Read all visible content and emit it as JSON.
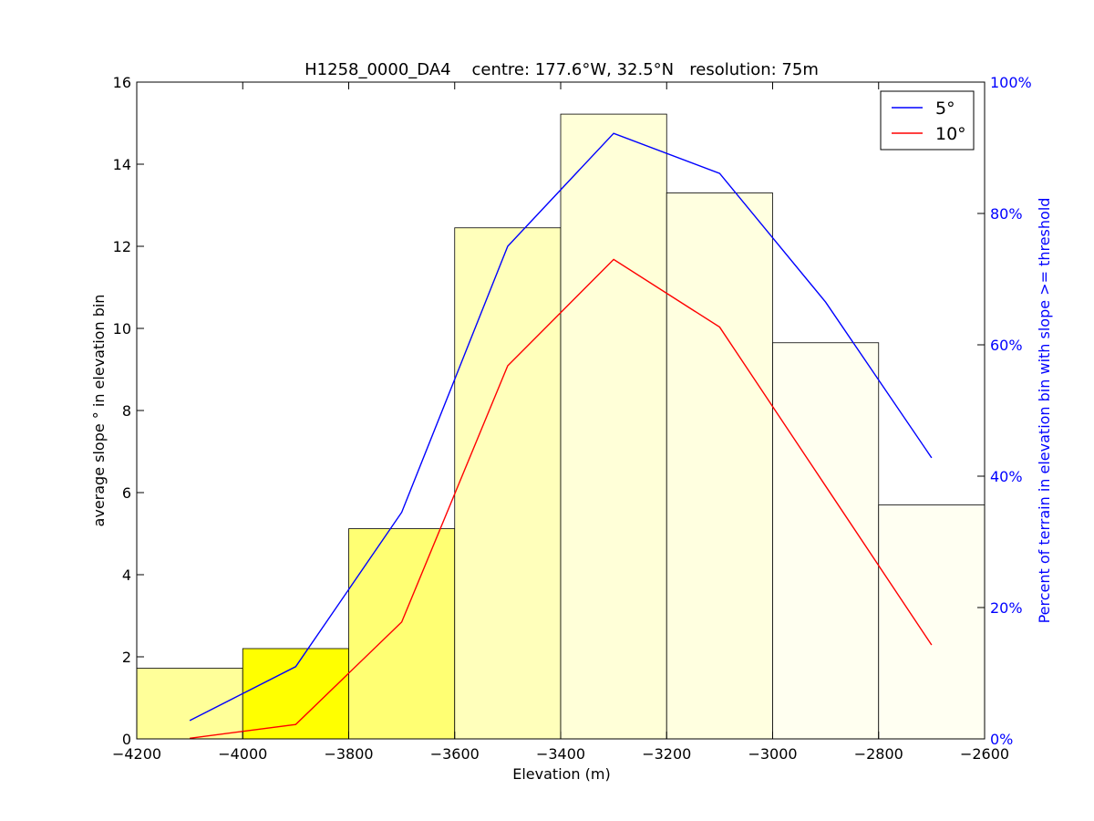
{
  "chart_data": {
    "type": "bar",
    "title": "H1258_0000_DA4    centre: 177.6°W, 32.5°N   resolution: 75m",
    "xlabel": "Elevation (m)",
    "ylabel": "average slope ° in elevation bin",
    "y2label": "Percent of terrain in elevation bin with slope >= threshold",
    "xlim": [
      -4200,
      -2600
    ],
    "ylim": [
      0,
      16
    ],
    "y2lim": [
      0,
      100
    ],
    "xticks": [
      "−4200",
      "−4000",
      "−3800",
      "−3600",
      "−3400",
      "−3200",
      "−3000",
      "−2800",
      "−2600"
    ],
    "xtick_values": [
      -4200,
      -4000,
      -3800,
      -3600,
      -3400,
      -3200,
      -3000,
      -2800,
      -2600
    ],
    "yticks": [
      "0",
      "2",
      "4",
      "6",
      "8",
      "10",
      "12",
      "14",
      "16"
    ],
    "ytick_values": [
      0,
      2,
      4,
      6,
      8,
      10,
      12,
      14,
      16
    ],
    "y2ticks": [
      "0%",
      "20%",
      "40%",
      "60%",
      "80%",
      "100%"
    ],
    "y2tick_values": [
      0,
      20,
      40,
      60,
      80,
      100
    ],
    "bins": [
      {
        "x0": -4200,
        "x1": -4000,
        "value": 1.72,
        "color": "#ffff99"
      },
      {
        "x0": -4000,
        "x1": -3800,
        "value": 2.2,
        "color": "#ffff00"
      },
      {
        "x0": -3800,
        "x1": -3600,
        "value": 5.12,
        "color": "#ffff73"
      },
      {
        "x0": -3600,
        "x1": -3400,
        "value": 12.45,
        "color": "#ffffbb"
      },
      {
        "x0": -3400,
        "x1": -3200,
        "value": 15.22,
        "color": "#ffffd8"
      },
      {
        "x0": -3200,
        "x1": -3000,
        "value": 13.3,
        "color": "#ffffe0"
      },
      {
        "x0": -3000,
        "x1": -2800,
        "value": 9.65,
        "color": "#fffff0"
      },
      {
        "x0": -2800,
        "x1": -2600,
        "value": 5.7,
        "color": "#fffff2"
      }
    ],
    "series": [
      {
        "name": "5°",
        "color": "#0000ff",
        "x": [
          -4100,
          -3900,
          -3700,
          -3500,
          -3300,
          -3100,
          -2900,
          -2700
        ],
        "values": [
          2.8,
          11.0,
          34.5,
          75.0,
          92.2,
          86.1,
          66.5,
          42.8
        ]
      },
      {
        "name": "10°",
        "color": "#ff0000",
        "x": [
          -4100,
          -3900,
          -3700,
          -3500,
          -3300,
          -3100,
          -2900,
          -2700
        ],
        "values": [
          0.1,
          2.2,
          17.8,
          56.8,
          73.0,
          62.7,
          38.5,
          14.3
        ]
      }
    ],
    "legend": "top-right",
    "grid": false,
    "axis_color": "#000000",
    "y2_color": "#0000ff"
  }
}
